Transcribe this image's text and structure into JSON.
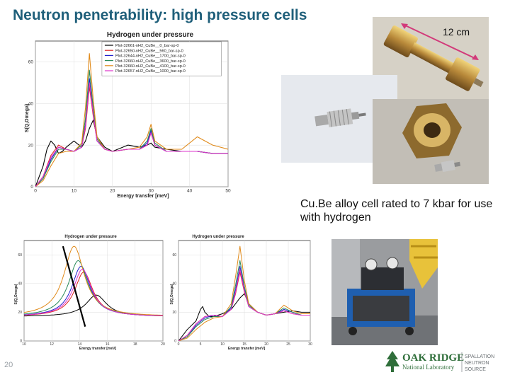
{
  "slide": {
    "title": "Neutron penetrability: high pressure cells",
    "page_number": "20",
    "caption": "Cu.Be alloy cell rated to 7 kbar for use with hydrogen",
    "dimension_label": "12 cm"
  },
  "logo": {
    "name_line1": "OAK RIDGE",
    "name_line2": "National Laboratory",
    "division_line1": "SPALLATION",
    "division_line2": "NEUTRON",
    "division_line3": "SOURCE",
    "color": "#2f6e3a"
  },
  "chart_data": [
    {
      "type": "line",
      "title": "Hydrogen under pressure",
      "xlabel": "Energy transfer [meV]",
      "ylabel": "S(Q,Omega)",
      "xlim": [
        0,
        50
      ],
      "ylim": [
        0,
        70
      ],
      "xticks": [
        "0",
        "10",
        "20",
        "30",
        "40",
        "50"
      ],
      "yticks": [
        "0",
        "20",
        "40",
        "60"
      ],
      "grid": true,
      "legend": "top-right",
      "series": [
        {
          "name": "Plot-32661-nH2_CuBe__0_bar-sp-0",
          "color": "#000000",
          "x": [
            0,
            2,
            3,
            4,
            5,
            6,
            7,
            8,
            10,
            12,
            13,
            14,
            15,
            16,
            18,
            20,
            24,
            27,
            29,
            30,
            31,
            34,
            38,
            42,
            46,
            50
          ],
          "y": [
            0,
            10,
            18,
            22,
            20,
            16,
            17,
            19,
            22,
            19,
            22,
            28,
            32,
            24,
            19,
            17,
            20,
            19,
            20,
            21,
            19,
            18,
            17,
            17,
            16,
            16
          ]
        },
        {
          "name": "Plot-32650-nH2_CuBe__560_bar-sp-0",
          "color": "#dd2222",
          "x": [
            0,
            2,
            4,
            6,
            8,
            10,
            12,
            13,
            14,
            15,
            16,
            18,
            20,
            24,
            27,
            29,
            30,
            31,
            34,
            38,
            42,
            46,
            50
          ],
          "y": [
            0,
            5,
            15,
            20,
            18,
            17,
            19,
            28,
            48,
            34,
            22,
            18,
            17,
            18,
            18,
            20,
            26,
            20,
            17,
            17,
            17,
            16,
            16
          ]
        },
        {
          "name": "Plot-32644-nH2_CuBe__1700_bar-sp-0",
          "color": "#2222cc",
          "x": [
            0,
            2,
            4,
            6,
            8,
            10,
            12,
            13,
            14,
            15,
            16,
            18,
            20,
            24,
            27,
            29,
            30,
            31,
            34,
            38,
            42,
            46,
            50
          ],
          "y": [
            0,
            4,
            13,
            19,
            18,
            17,
            19,
            30,
            52,
            36,
            22,
            18,
            17,
            18,
            18,
            21,
            27,
            20,
            17,
            17,
            17,
            16,
            16
          ]
        },
        {
          "name": "Plot-32660-nH2_CuBe__3600_bar-sp-0",
          "color": "#2a8a5a",
          "x": [
            0,
            2,
            4,
            6,
            8,
            10,
            12,
            13,
            14,
            15,
            16,
            18,
            20,
            24,
            27,
            29,
            30,
            31,
            34,
            38,
            42,
            46,
            50
          ],
          "y": [
            0,
            4,
            12,
            18,
            18,
            17,
            20,
            33,
            56,
            38,
            23,
            18,
            17,
            18,
            18,
            22,
            28,
            21,
            17,
            17,
            17,
            16,
            16
          ]
        },
        {
          "name": "Plot-32660-nH2_CuBe__4100_bar-sp-0",
          "color": "#e08a1a",
          "x": [
            0,
            2,
            4,
            6,
            8,
            10,
            12,
            13,
            14,
            15,
            16,
            18,
            20,
            24,
            27,
            29,
            30,
            31,
            34,
            38,
            42,
            46,
            50
          ],
          "y": [
            0,
            3,
            10,
            16,
            17,
            17,
            21,
            38,
            64,
            42,
            24,
            18,
            17,
            18,
            19,
            24,
            30,
            22,
            18,
            18,
            24,
            20,
            18
          ]
        },
        {
          "name": "Plot-32657-nH2_CuBe__1000_bar-sp-0",
          "color": "#dd33cc",
          "x": [
            0,
            2,
            4,
            6,
            8,
            10,
            12,
            13,
            14,
            15,
            16,
            18,
            20,
            24,
            27,
            29,
            30,
            31,
            34,
            38,
            42,
            46,
            50
          ],
          "y": [
            0,
            5,
            14,
            19,
            18,
            17,
            19,
            29,
            50,
            35,
            22,
            18,
            17,
            18,
            18,
            20,
            26,
            20,
            17,
            17,
            17,
            16,
            16
          ]
        }
      ]
    },
    {
      "type": "line",
      "title": "Hydrogen under pressure",
      "xlabel": "Energy transfer [meV]",
      "ylabel": "S(Q,Omega)",
      "xlim": [
        10,
        20
      ],
      "ylim": [
        0,
        70
      ],
      "xticks": [
        "10",
        "12",
        "14",
        "16",
        "18",
        "20"
      ],
      "yticks": [
        "0",
        "20",
        "40",
        "60"
      ],
      "grid": true,
      "series": [
        {
          "name": "Plot-32661-nH2_CuBe__0_bar-sp-0",
          "color": "#000000",
          "peak_x": 15.2,
          "peak_y": 32,
          "width": 0.9
        },
        {
          "name": "Plot-32650-nH2_CuBe__560_bar-sp-0",
          "color": "#dd2222",
          "peak_x": 14.3,
          "peak_y": 48,
          "width": 0.8
        },
        {
          "name": "Plot-32644-nH2_CuBe__1700_bar-sp-0",
          "color": "#2222cc",
          "peak_x": 14.1,
          "peak_y": 52,
          "width": 0.8
        },
        {
          "name": "Plot-32660-nH2_CuBe__3600_bar-sp-0",
          "color": "#2a8a5a",
          "peak_x": 13.9,
          "peak_y": 56,
          "width": 0.85
        },
        {
          "name": "Plot-32660-nH2_CuBe__4100_bar-sp-0",
          "color": "#e08a1a",
          "peak_x": 13.6,
          "peak_y": 66,
          "width": 0.9
        },
        {
          "name": "Plot-32657-nH2_CuBe__1000_bar-sp-0",
          "color": "#dd33cc",
          "peak_x": 14.2,
          "peak_y": 50,
          "width": 0.8
        }
      ]
    },
    {
      "type": "line",
      "title": "Hydrogen under pressure",
      "xlabel": "Energy transfer [meV]",
      "ylabel": "S(Q,Omega)",
      "xlim": [
        0,
        30
      ],
      "ylim": [
        0,
        70
      ],
      "xticks": [
        "0",
        "5",
        "10",
        "15",
        "20",
        "25",
        "30"
      ],
      "yticks": [
        "0",
        "20",
        "40",
        "60"
      ],
      "grid": true,
      "series": [
        {
          "name": "Plot-32661-nH2_CuBe__0_bar-sp-0",
          "color": "#000000",
          "x": [
            0,
            2,
            4,
            5,
            5.5,
            6,
            7,
            8,
            10,
            12,
            13,
            14,
            15,
            16,
            18,
            20,
            22,
            24,
            26,
            28,
            30
          ],
          "y": [
            0,
            8,
            14,
            22,
            24,
            20,
            17,
            17,
            19,
            22,
            26,
            30,
            33,
            26,
            20,
            18,
            19,
            20,
            21,
            20,
            20
          ]
        },
        {
          "name": "Plot-32650-nH2_CuBe__560_bar-sp-0",
          "color": "#dd2222",
          "x": [
            0,
            2,
            4,
            6,
            8,
            10,
            12,
            13,
            14,
            15,
            16,
            18,
            20,
            22,
            24,
            26,
            28,
            30
          ],
          "y": [
            0,
            4,
            12,
            17,
            18,
            17,
            22,
            33,
            48,
            34,
            24,
            20,
            18,
            19,
            21,
            19,
            18,
            18
          ]
        },
        {
          "name": "Plot-32644-nH2_CuBe__1700_bar-sp-0",
          "color": "#2222cc",
          "x": [
            0,
            2,
            4,
            6,
            8,
            10,
            12,
            13,
            14,
            15,
            16,
            18,
            20,
            22,
            24,
            26,
            28,
            30
          ],
          "y": [
            0,
            3,
            11,
            16,
            18,
            17,
            23,
            36,
            52,
            36,
            24,
            20,
            18,
            19,
            22,
            20,
            18,
            18
          ]
        },
        {
          "name": "Plot-32660-nH2_CuBe__3600_bar-sp-0",
          "color": "#2a8a5a",
          "x": [
            0,
            2,
            4,
            6,
            8,
            10,
            12,
            13,
            14,
            15,
            16,
            18,
            20,
            22,
            24,
            26,
            28,
            30
          ],
          "y": [
            0,
            3,
            10,
            15,
            17,
            17,
            24,
            39,
            56,
            38,
            25,
            20,
            18,
            19,
            23,
            20,
            18,
            18
          ]
        },
        {
          "name": "Plot-32660-nH2_CuBe__4100_bar-sp-0",
          "color": "#e08a1a",
          "x": [
            0,
            2,
            4,
            6,
            8,
            10,
            12,
            13,
            14,
            15,
            16,
            18,
            20,
            22,
            24,
            26,
            28,
            30
          ],
          "y": [
            0,
            2,
            8,
            13,
            16,
            17,
            26,
            45,
            66,
            42,
            26,
            20,
            18,
            19,
            25,
            21,
            19,
            19
          ]
        },
        {
          "name": "Plot-32657-nH2_CuBe__1000_bar-sp-0",
          "color": "#dd33cc",
          "x": [
            0,
            2,
            4,
            6,
            8,
            10,
            12,
            13,
            14,
            15,
            16,
            18,
            20,
            22,
            24,
            26,
            28,
            30
          ],
          "y": [
            0,
            4,
            12,
            17,
            18,
            17,
            22,
            34,
            50,
            35,
            24,
            20,
            18,
            19,
            21,
            19,
            18,
            18
          ]
        }
      ]
    }
  ]
}
